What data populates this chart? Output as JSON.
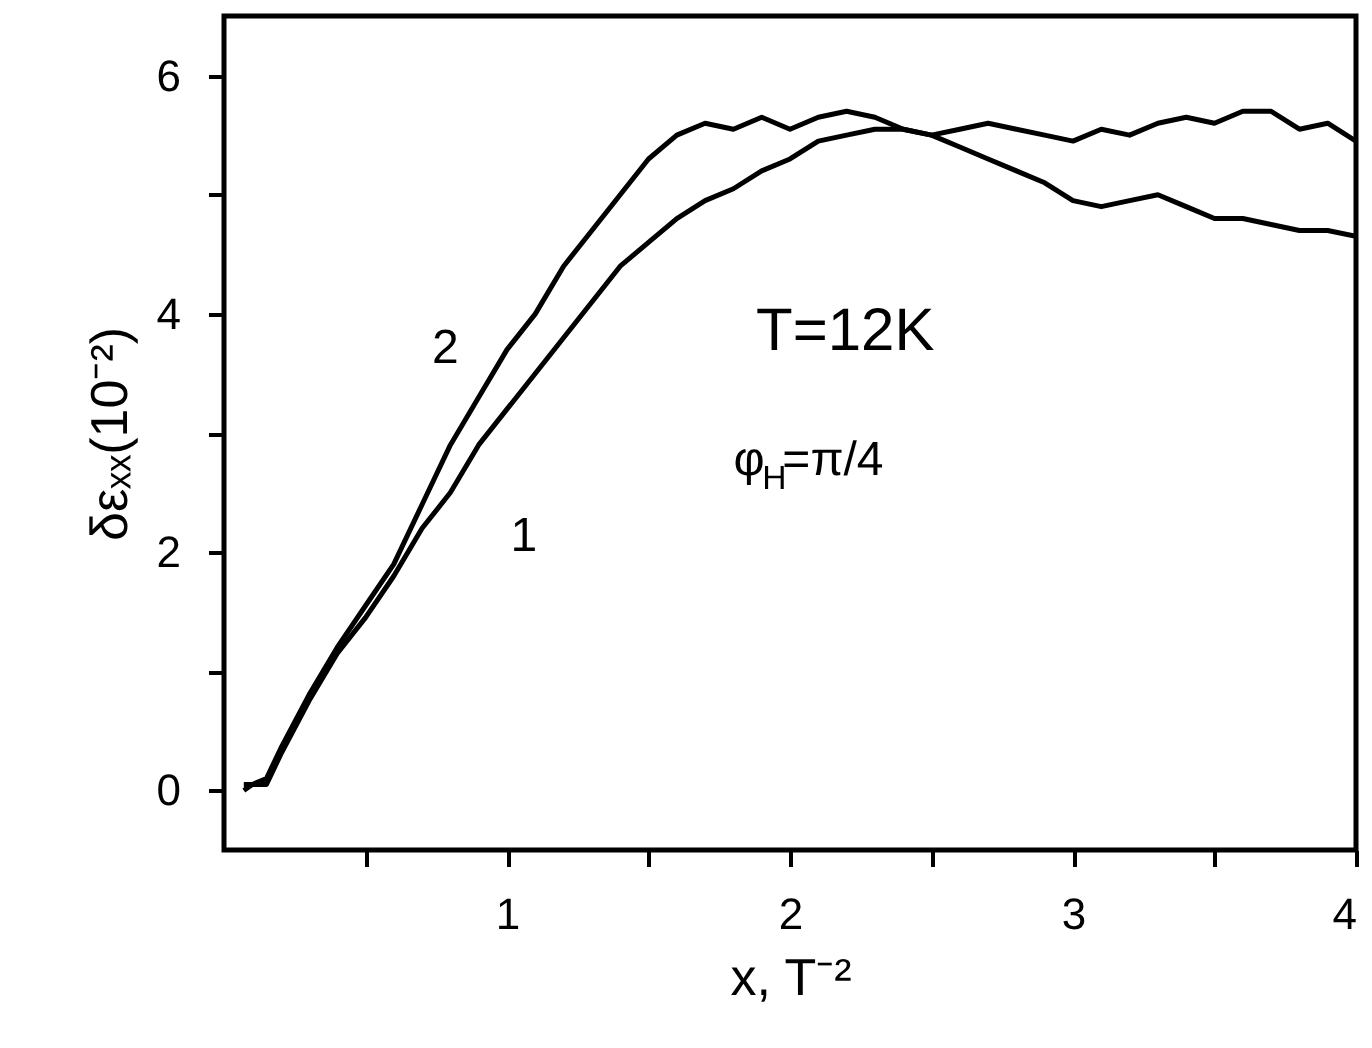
{
  "chart_data": {
    "type": "line",
    "xlabel": "x, T⁻²",
    "ylabel": "δεₓₓ(10⁻²)",
    "xlim": [
      0,
      4
    ],
    "ylim": [
      -0.5,
      6.5
    ],
    "xticks": [
      {
        "value": 0.5,
        "label": null
      },
      1,
      {
        "value": 1.5,
        "label": null
      },
      2,
      {
        "value": 2.5,
        "label": null
      },
      3,
      {
        "value": 3.5,
        "label": null
      },
      4
    ],
    "yticks": [
      0,
      {
        "value": 1,
        "label": null
      },
      2,
      {
        "value": 3,
        "label": null
      },
      4,
      {
        "value": 5,
        "label": null
      },
      6
    ],
    "grid": false,
    "marker": "none",
    "line_style": "solid",
    "annotations": [
      "T=12K",
      "φ$_{H}$=π/4"
    ],
    "series": [
      {
        "name": "1",
        "color": "#000000",
        "x": [
          0.07,
          0.15,
          0.2,
          0.3,
          0.4,
          0.5,
          0.6,
          0.7,
          0.8,
          0.9,
          1.0,
          1.1,
          1.2,
          1.3,
          1.4,
          1.5,
          1.6,
          1.7,
          1.8,
          1.9,
          2.0,
          2.1,
          2.2,
          2.3,
          2.4,
          2.5,
          2.6,
          2.7,
          2.8,
          2.9,
          3.0,
          3.1,
          3.2,
          3.3,
          3.4,
          3.5,
          3.6,
          3.7,
          3.8,
          3.9,
          4.0
        ],
        "values": [
          0.05,
          0.05,
          0.3,
          0.75,
          1.15,
          1.45,
          1.8,
          2.2,
          2.5,
          2.9,
          3.2,
          3.5,
          3.8,
          4.1,
          4.4,
          4.6,
          4.8,
          4.95,
          5.05,
          5.2,
          5.3,
          5.45,
          5.5,
          5.55,
          5.55,
          5.5,
          5.55,
          5.6,
          5.55,
          5.5,
          5.45,
          5.55,
          5.5,
          5.6,
          5.65,
          5.6,
          5.7,
          5.7,
          5.55,
          5.6,
          5.45
        ]
      },
      {
        "name": "2",
        "color": "#000000",
        "x": [
          0.07,
          0.1,
          0.15,
          0.2,
          0.3,
          0.4,
          0.5,
          0.6,
          0.7,
          0.8,
          0.9,
          1.0,
          1.1,
          1.2,
          1.3,
          1.4,
          1.5,
          1.6,
          1.7,
          1.8,
          1.9,
          2.0,
          2.1,
          2.2,
          2.3,
          2.4,
          2.5,
          2.6,
          2.7,
          2.8,
          2.9,
          3.0,
          3.1,
          3.2,
          3.3,
          3.4,
          3.5,
          3.6,
          3.7,
          3.8,
          3.9,
          4.0
        ],
        "values": [
          0,
          0.05,
          0.1,
          0.35,
          0.8,
          1.2,
          1.55,
          1.9,
          2.4,
          2.9,
          3.3,
          3.7,
          4.0,
          4.4,
          4.7,
          5.0,
          5.3,
          5.5,
          5.6,
          5.55,
          5.65,
          5.55,
          5.65,
          5.7,
          5.65,
          5.55,
          5.5,
          5.4,
          5.3,
          5.2,
          5.1,
          4.95,
          4.9,
          4.95,
          5.0,
          4.9,
          4.8,
          4.8,
          4.75,
          4.7,
          4.7,
          4.65
        ]
      }
    ]
  }
}
